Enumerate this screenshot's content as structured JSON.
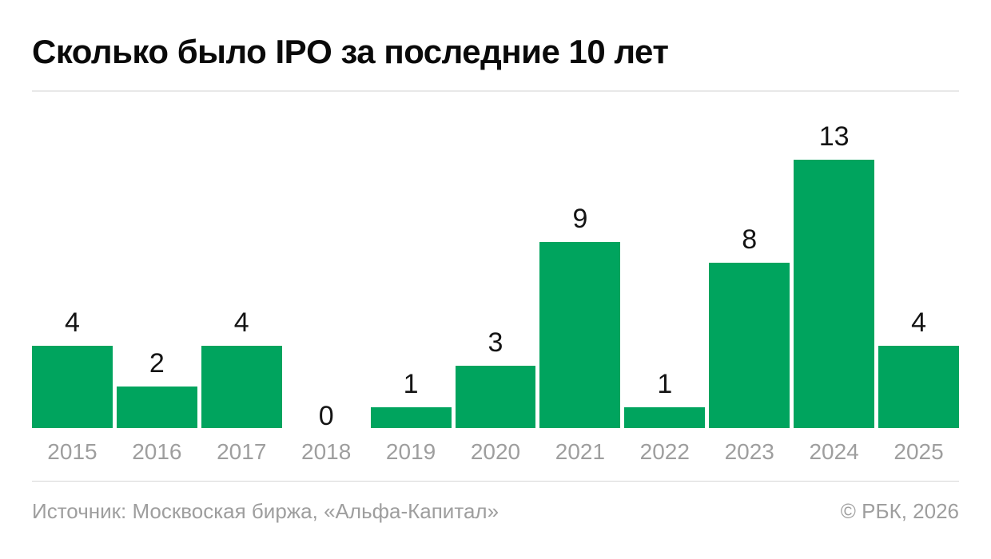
{
  "page": {
    "title": "Сколько было IPO за последние 10 лет",
    "source_label": "Источник: Москвоская биржа, «Альфа-Капитал»",
    "copyright": "© РБК, 2026"
  },
  "colors": {
    "bar": "#00A45E",
    "title_text": "#0A0A0A",
    "value_label_text": "#141414",
    "axis_text": "#9E9E9E",
    "divider_top": "#E8E8E8",
    "divider_bottom": "#D6D6D6",
    "background": "#FFFFFF"
  },
  "chart_data": {
    "type": "bar",
    "title": "Сколько было IPO за последние 10 лет",
    "categories": [
      "2015",
      "2016",
      "2017",
      "2018",
      "2019",
      "2020",
      "2021",
      "2022",
      "2023",
      "2024",
      "2025"
    ],
    "values": [
      4,
      2,
      4,
      0,
      1,
      3,
      9,
      1,
      8,
      13,
      4
    ],
    "xlabel": "",
    "ylabel": "",
    "ylim": [
      0,
      13
    ],
    "grid": false,
    "legend": "none",
    "y_axis_shown": false,
    "value_labels_shown": true,
    "bar_color": "#00A45E"
  }
}
